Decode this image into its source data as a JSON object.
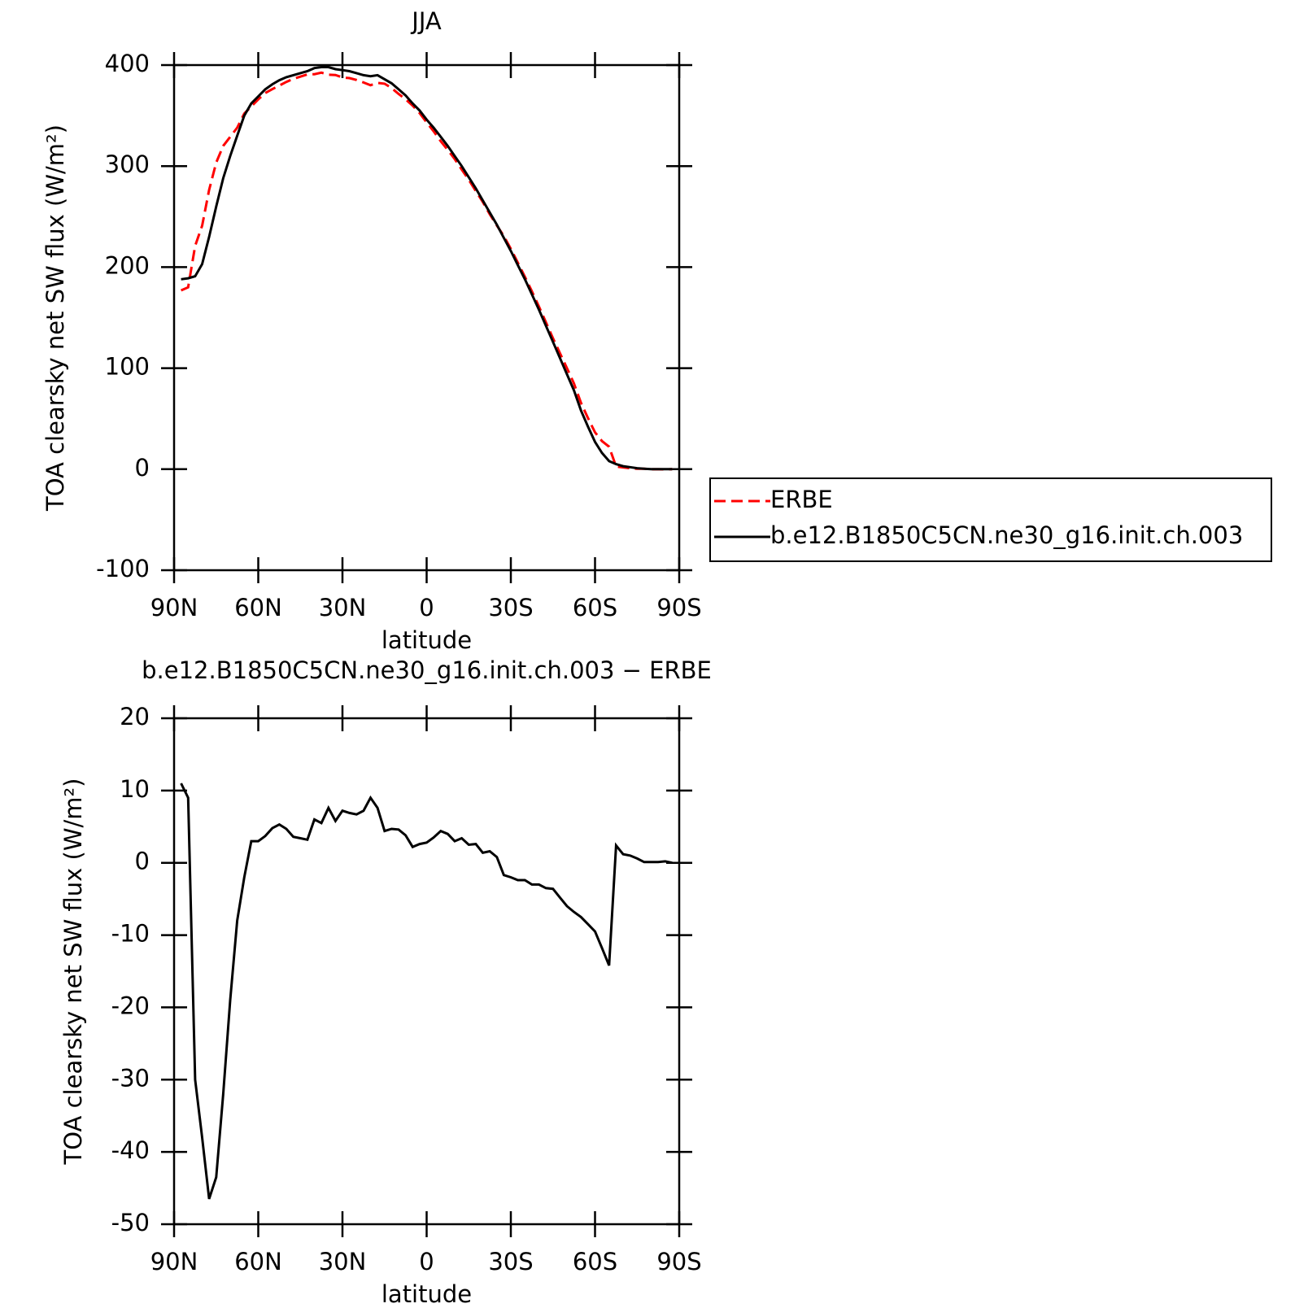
{
  "chart_data": [
    {
      "type": "line",
      "title": "JJA",
      "ylabel": "TOA clearsky net SW flux (W/m²)",
      "xlabel": "latitude",
      "x": [
        87.5,
        85,
        82.5,
        80,
        77.5,
        75,
        72.5,
        70,
        67.5,
        65,
        62.5,
        60,
        57.5,
        55,
        52.5,
        50,
        47.5,
        45,
        42.5,
        40,
        37.5,
        35,
        32.5,
        30,
        27.5,
        25,
        22.5,
        20,
        17.5,
        15,
        12.5,
        10,
        7.5,
        5,
        2.5,
        0,
        -2.5,
        -5,
        -7.5,
        -10,
        -12.5,
        -15,
        -17.5,
        -20,
        -22.5,
        -25,
        -27.5,
        -30,
        -32.5,
        -35,
        -37.5,
        -40,
        -42.5,
        -45,
        -47.5,
        -50,
        -52.5,
        -55,
        -57.5,
        -60,
        -62.5,
        -65,
        -67.5,
        -70,
        -72.5,
        -75,
        -77.5,
        -80,
        -82.5,
        -85,
        -87.5
      ],
      "series": [
        {
          "name": "ERBE",
          "color": "#ff0000",
          "linestyle": "dashed",
          "values": [
            177,
            180,
            221,
            241,
            276.5,
            303.5,
            320,
            329,
            338,
            352,
            359,
            366,
            372.3,
            376.2,
            379.7,
            383.3,
            386.4,
            388.6,
            390.8,
            391,
            392.5,
            390.4,
            390.2,
            387.8,
            387.1,
            385.3,
            382.8,
            380,
            382.4,
            381.6,
            377.3,
            371.4,
            366.2,
            359.8,
            352.4,
            343.2,
            334.5,
            324.6,
            316,
            307,
            296.6,
            286.5,
            275.4,
            264.6,
            252.4,
            241.2,
            230.7,
            218,
            204.4,
            190.4,
            176,
            161,
            145.5,
            129.6,
            114.8,
            100,
            84.8,
            65.5,
            50.5,
            36.5,
            27.8,
            22.2,
            2.6,
            1.8,
            1,
            0.4,
            0.4,
            -0.1,
            -0.1,
            -0.2,
            0
          ]
        },
        {
          "name": "b.e12.B1850C5CN.ne30_g16.init.ch.003",
          "color": "#000000",
          "linestyle": "solid",
          "values": [
            188,
            189,
            191,
            203,
            230,
            260,
            288,
            310,
            330,
            350,
            362,
            369,
            376,
            381,
            385,
            388,
            390,
            392,
            394,
            397,
            398,
            398,
            396,
            395,
            394,
            392,
            390,
            389,
            390,
            386,
            382,
            376,
            370,
            362,
            355,
            346,
            338,
            329,
            320,
            310,
            300,
            289,
            278,
            266,
            254,
            242,
            229,
            216,
            202,
            188,
            173,
            158,
            142,
            126,
            110,
            94,
            78,
            58,
            42,
            27,
            16,
            8,
            5,
            3,
            2,
            1,
            0.5,
            0,
            0,
            0,
            0
          ]
        }
      ],
      "xlim": [
        90,
        -90
      ],
      "xticks": [
        {
          "value": 90,
          "label": "90N"
        },
        {
          "value": 60,
          "label": "60N"
        },
        {
          "value": 30,
          "label": "30N"
        },
        0,
        {
          "value": -30,
          "label": "30S"
        },
        {
          "value": -60,
          "label": "60S"
        },
        {
          "value": -90,
          "label": "90S"
        }
      ],
      "ylim": [
        -100,
        400
      ],
      "yticks": [
        -100,
        0,
        100,
        200,
        300,
        400
      ],
      "legend": "right"
    },
    {
      "type": "line",
      "title": "b.e12.B1850C5CN.ne30_g16.init.ch.003 − ERBE",
      "ylabel": "TOA clearsky net SW flux (W/m²)",
      "xlabel": "latitude",
      "x": [
        87.5,
        85,
        82.5,
        80,
        77.5,
        75,
        72.5,
        70,
        67.5,
        65,
        62.5,
        60,
        57.5,
        55,
        52.5,
        50,
        47.5,
        45,
        42.5,
        40,
        37.5,
        35,
        32.5,
        30,
        27.5,
        25,
        22.5,
        20,
        17.5,
        15,
        12.5,
        10,
        7.5,
        5,
        2.5,
        0,
        -2.5,
        -5,
        -7.5,
        -10,
        -12.5,
        -15,
        -17.5,
        -20,
        -22.5,
        -25,
        -27.5,
        -30,
        -32.5,
        -35,
        -37.5,
        -40,
        -42.5,
        -45,
        -47.5,
        -50,
        -52.5,
        -55,
        -57.5,
        -60,
        -62.5,
        -65,
        -67.5,
        -70,
        -72.5,
        -75,
        -77.5,
        -80,
        -82.5,
        -85,
        -87.5
      ],
      "values": [
        11,
        9,
        -30,
        -38,
        -46.5,
        -43.5,
        -32,
        -19,
        -8,
        -2,
        3,
        3,
        3.7,
        4.8,
        5.3,
        4.7,
        3.6,
        3.4,
        3.2,
        6.0,
        5.5,
        7.6,
        5.8,
        7.2,
        6.9,
        6.7,
        7.2,
        9.0,
        7.6,
        4.4,
        4.7,
        4.6,
        3.8,
        2.2,
        2.6,
        2.8,
        3.5,
        4.4,
        4.0,
        3.0,
        3.4,
        2.5,
        2.6,
        1.4,
        1.6,
        0.8,
        -1.7,
        -2.0,
        -2.4,
        -2.4,
        -3.0,
        -3.0,
        -3.5,
        -3.6,
        -4.8,
        -6.0,
        -6.8,
        -7.5,
        -8.5,
        -9.5,
        -11.8,
        -14.2,
        2.4,
        1.2,
        1.0,
        0.6,
        0.1,
        0.1,
        0.1,
        0.2,
        0.0
      ],
      "color": "#000000",
      "xlim": [
        90,
        -90
      ],
      "xticks": [
        {
          "value": 90,
          "label": "90N"
        },
        {
          "value": 60,
          "label": "60N"
        },
        {
          "value": 30,
          "label": "30N"
        },
        0,
        {
          "value": -30,
          "label": "30S"
        },
        {
          "value": -60,
          "label": "60S"
        },
        {
          "value": -90,
          "label": "90S"
        }
      ],
      "ylim": [
        -50,
        20
      ],
      "yticks": [
        -50,
        -40,
        -30,
        -20,
        -10,
        0,
        10,
        20
      ]
    }
  ]
}
